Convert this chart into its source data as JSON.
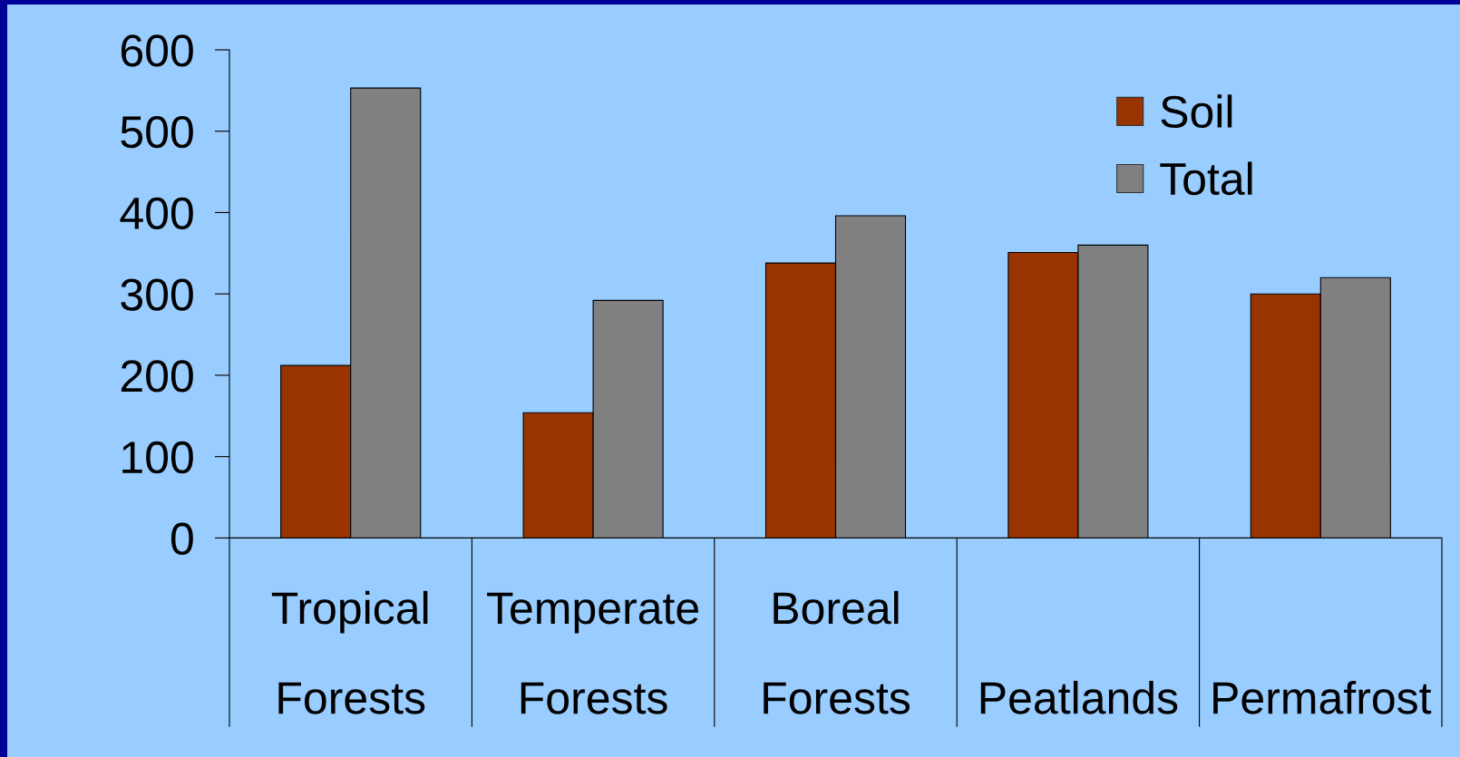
{
  "chart_data": {
    "type": "bar",
    "categories": [
      "Tropical Forests",
      "Temperate Forests",
      "Boreal Forests",
      "Peatlands",
      "Permafrost"
    ],
    "series": [
      {
        "name": "Soil",
        "color": "#993300",
        "values": [
          212,
          154,
          338,
          351,
          300
        ]
      },
      {
        "name": "Total",
        "color": "#808080",
        "values": [
          553,
          292,
          396,
          360,
          320
        ]
      }
    ],
    "ylim": [
      0,
      600
    ],
    "yticks": [
      0,
      100,
      200,
      300,
      400,
      500,
      600
    ],
    "grid": false,
    "legend": "top right"
  }
}
